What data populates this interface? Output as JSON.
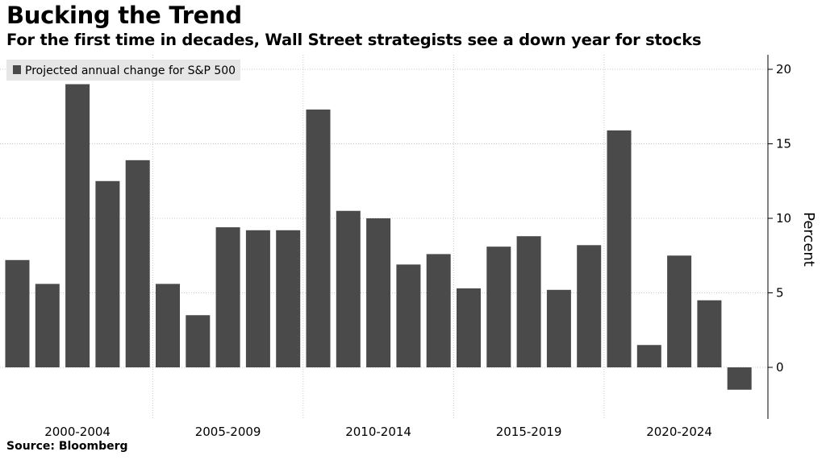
{
  "title": "Bucking the Trend",
  "subtitle": "For the first time in decades, Wall Street strategists see a down year for stocks",
  "source": "Source: Bloomberg",
  "colors": {
    "bar": "#4a4a4a",
    "grid": "#c8c8c8",
    "legend_bg": "#e6e6e6"
  },
  "chart_data": {
    "type": "bar",
    "title": "Bucking the Trend",
    "subtitle": "For the first time in decades, Wall Street strategists see a down year for stocks",
    "xlabel": "",
    "ylabel": "Percent",
    "y_axis_side": "right",
    "ylim": [
      -3.5,
      20.5
    ],
    "yticks": [
      0,
      5,
      10,
      15,
      20
    ],
    "grid": true,
    "legend_position": "top-left",
    "x_group_labels": [
      "2000-2004",
      "2005-2009",
      "2010-2014",
      "2015-2019",
      "2020-2024"
    ],
    "series": [
      {
        "name": "Projected annual change for S&P 500",
        "values": [
          7.2,
          5.6,
          19.0,
          12.5,
          13.9,
          5.6,
          3.5,
          9.4,
          9.2,
          9.2,
          17.3,
          10.5,
          10.0,
          6.9,
          7.6,
          5.3,
          8.1,
          8.8,
          5.2,
          8.2,
          15.9,
          1.5,
          7.5,
          4.5,
          -1.5
        ]
      }
    ]
  }
}
